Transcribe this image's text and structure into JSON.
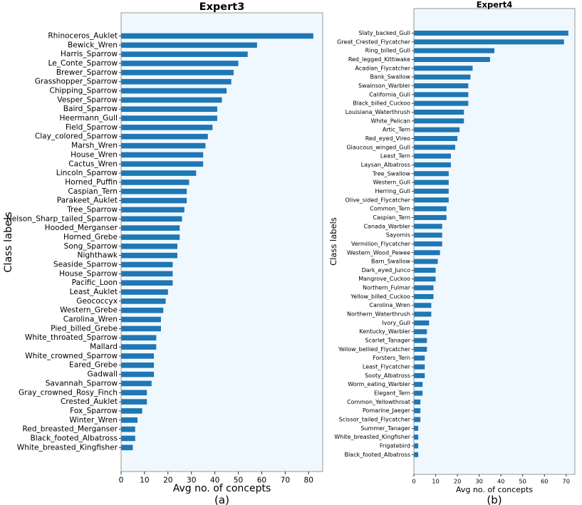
{
  "chart_data": [
    {
      "type": "bar",
      "orientation": "horizontal",
      "title": "Expert3",
      "xlabel": "Avg no. of concepts",
      "ylabel": "Class labels",
      "caption": "(a)",
      "xlim": [
        0,
        86
      ],
      "xticks": [
        0,
        10,
        20,
        30,
        40,
        50,
        60,
        70,
        80
      ],
      "bar_color": "#1f77b4",
      "background": "#f0f8ff",
      "categories": [
        "Rhinoceros_Auklet",
        "Bewick_Wren",
        "Harris_Sparrow",
        "Le_Conte_Sparrow",
        "Brewer_Sparrow",
        "Grasshopper_Sparrow",
        "Chipping_Sparrow",
        "Vesper_Sparrow",
        "Baird_Sparrow",
        "Heermann_Gull",
        "Field_Sparrow",
        "Clay_colored_Sparrow",
        "Marsh_Wren",
        "House_Wren",
        "Cactus_Wren",
        "Lincoln_Sparrow",
        "Horned_Puffin",
        "Caspian_Tern",
        "Parakeet_Auklet",
        "Tree_Sparrow",
        "Nelson_Sharp_tailed_Sparrow",
        "Hooded_Merganser",
        "Horned_Grebe",
        "Song_Sparrow",
        "Nighthawk",
        "Seaside_Sparrow",
        "House_Sparrow",
        "Pacific_Loon",
        "Least_Auklet",
        "Geococcyx",
        "Western_Grebe",
        "Carolina_Wren",
        "Pied_billed_Grebe",
        "White_throated_Sparrow",
        "Mallard",
        "White_crowned_Sparrow",
        "Eared_Grebe",
        "Gadwall",
        "Savannah_Sparrow",
        "Gray_crowned_Rosy_Finch",
        "Crested_Auklet",
        "Fox_Sparrow",
        "Winter_Wren",
        "Red_breasted_Merganser",
        "Black_footed_Albatross",
        "White_breasted_Kingfisher"
      ],
      "values": [
        82,
        58,
        54,
        50,
        48,
        47,
        45,
        43,
        41,
        41,
        39,
        37,
        36,
        35,
        35,
        32,
        29,
        28,
        28,
        27,
        26,
        25,
        25,
        24,
        24,
        22,
        22,
        22,
        20,
        19,
        18,
        17,
        17,
        15,
        15,
        14,
        14,
        14,
        13,
        11,
        11,
        9,
        7,
        6,
        6,
        5
      ]
    },
    {
      "type": "bar",
      "orientation": "horizontal",
      "title": "Expert4",
      "xlabel": "Avg no. of concepts",
      "ylabel": "Class labels",
      "caption": "(b)",
      "xlim": [
        0,
        74
      ],
      "xticks": [
        0,
        10,
        20,
        30,
        40,
        50,
        60,
        70
      ],
      "bar_color": "#1f77b4",
      "background": "#f0f8ff",
      "categories": [
        "Slaty_backed_Gull",
        "Great_Crested_Flycatcher",
        "Ring_billed_Gull",
        "Red_legged_Kittiwake",
        "Acadian_Flycatcher",
        "Bank_Swallow",
        "Swainson_Warbler",
        "California_Gull",
        "Black_billed_Cuckoo",
        "Louisiana_Waterthrush",
        "White_Pelican",
        "Artic_Tern",
        "Red_eyed_Vireo",
        "Glaucous_winged_Gull",
        "Least_Tern",
        "Laysan_Albatross",
        "Tree_Swallow",
        "Western_Gull",
        "Herring_Gull",
        "Olive_sided_Flycatcher",
        "Common_Tern",
        "Caspian_Tern",
        "Canada_Warbler",
        "Sayornis",
        "Vermilion_Flycatcher",
        "Western_Wood_Pewee",
        "Barn_Swallow",
        "Dark_eyed_Junco",
        "Mangrove_Cuckoo",
        "Northern_Fulmar",
        "Yellow_billed_Cuckoo",
        "Carolina_Wren",
        "Northern_Waterthrush",
        "Ivory_Gull",
        "Kentucky_Warbler",
        "Scarlet_Tanager",
        "Yellow_bellied_Flycatcher",
        "Forsters_Tern",
        "Least_Flycatcher",
        "Sooty_Albatross",
        "Worm_eating_Warbler",
        "Elegant_Tern",
        "Common_Yellowthroat",
        "Pomarine_Jaeger",
        "Scissor_tailed_Flycatcher",
        "Summer_Tanager",
        "White_breasted_Kingfisher",
        "Frigatebird",
        "Black_footed_Albatross"
      ],
      "values": [
        71,
        69,
        37,
        35,
        27,
        26,
        25,
        25,
        25,
        23,
        23,
        21,
        20,
        19,
        17,
        17,
        16,
        16,
        16,
        16,
        15,
        15,
        13,
        13,
        13,
        12,
        11,
        10,
        10,
        9,
        9,
        8,
        8,
        7,
        6,
        6,
        6,
        5,
        5,
        5,
        4,
        4,
        3,
        3,
        3,
        2,
        2,
        2,
        2
      ]
    }
  ]
}
